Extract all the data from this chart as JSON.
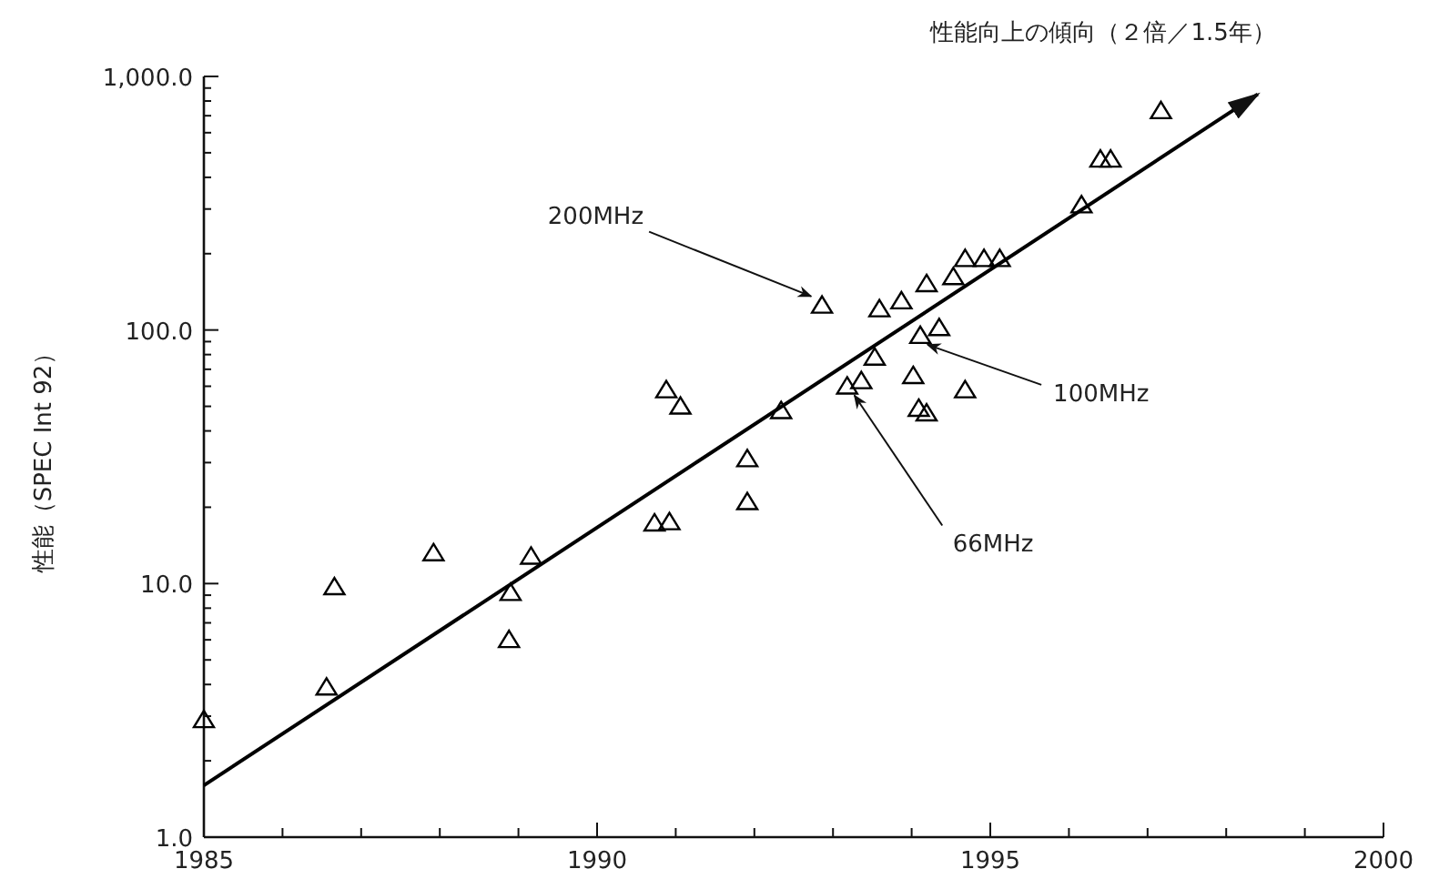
{
  "chart_data": {
    "type": "scatter",
    "ylabel": "性能（SPEC Int 92）",
    "log": "y",
    "xlim": [
      1985,
      2000
    ],
    "xticks": [
      1985,
      1990,
      1995,
      2000
    ],
    "ylim": [
      1,
      1000
    ],
    "yticks": [
      {
        "value": 1,
        "label": "1.0"
      },
      {
        "value": 10,
        "label": "10.0"
      },
      {
        "value": 100,
        "label": "100.0"
      },
      {
        "value": 1000,
        "label": "1,000.0"
      }
    ],
    "grid": false,
    "series": [
      {
        "color": "#000000",
        "marker": "triangle",
        "x": [
          1985.0,
          1986.56,
          1986.66,
          1987.92,
          1988.88,
          1988.9,
          1989.16,
          1990.73,
          1990.88,
          1990.92,
          1991.06,
          1991.91,
          1991.91,
          1992.34,
          1992.86,
          1993.18,
          1993.36,
          1993.53,
          1993.59,
          1993.87,
          1994.02,
          1994.09,
          1994.11,
          1994.19,
          1994.19,
          1994.35,
          1994.53,
          1994.68,
          1994.68,
          1994.92,
          1995.12,
          1996.16,
          1996.4,
          1996.53,
          1997.17
        ],
        "values": [
          2.9,
          3.9,
          9.7,
          13.2,
          6.0,
          9.2,
          12.8,
          17.3,
          58,
          17.5,
          50,
          31,
          21,
          48,
          125,
          60,
          63,
          78,
          121,
          130,
          66,
          49,
          95,
          47,
          152,
          102,
          162,
          191,
          58,
          191,
          191,
          311,
          471,
          471,
          731
        ]
      },
      {
        "type": "line",
        "name": "性能向上の傾向（２倍／1.5年）",
        "color": "#000000",
        "line_style": "solid",
        "x": [
          1985.0,
          1998.4
        ],
        "values": [
          1.6,
          850
        ]
      }
    ],
    "annotations": [
      {
        "text": "200MHz",
        "x": 1992.86,
        "y": 125
      },
      {
        "text": "100MHz",
        "x": 1994.11,
        "y": 95
      },
      {
        "text": "66MHz",
        "x": 1993.18,
        "y": 60
      }
    ]
  }
}
